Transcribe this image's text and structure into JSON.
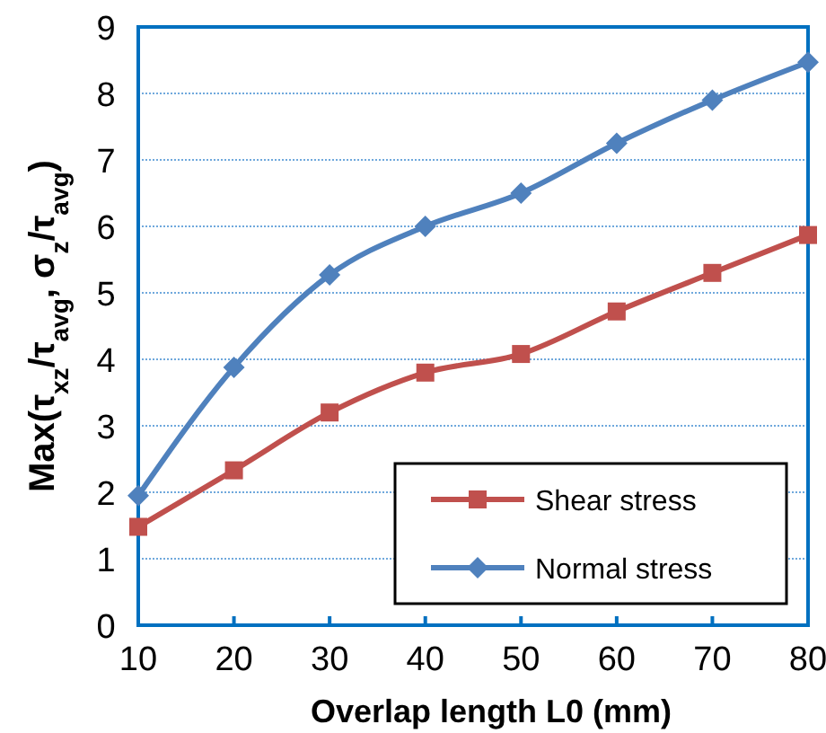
{
  "chart_data": {
    "type": "line",
    "xlabel": "Overlap length L0 (mm)",
    "ylabel": "Max(τ$_{xz}$/τ$_{avg}$, σ$_{z}$/τ$_{avg}$)",
    "x": [
      10,
      20,
      30,
      40,
      50,
      60,
      70,
      80
    ],
    "series": [
      {
        "name": "Shear stress",
        "color": "#c0504d",
        "marker": "square",
        "values": [
          1.48,
          2.33,
          3.2,
          3.8,
          4.08,
          4.72,
          5.3,
          5.87
        ]
      },
      {
        "name": "Normal stress",
        "color": "#4f81bd",
        "marker": "diamond",
        "values": [
          1.95,
          3.88,
          5.27,
          6.0,
          6.5,
          7.25,
          7.9,
          8.47
        ]
      }
    ],
    "xlim": [
      10,
      80
    ],
    "xticks": [
      10,
      20,
      30,
      40,
      50,
      60,
      70,
      80
    ],
    "ylim": [
      0,
      9
    ],
    "yticks": [
      0,
      1,
      2,
      3,
      4,
      5,
      6,
      7,
      8,
      9
    ],
    "grid": "y",
    "legend": "bottom right",
    "line_style": "solid"
  }
}
